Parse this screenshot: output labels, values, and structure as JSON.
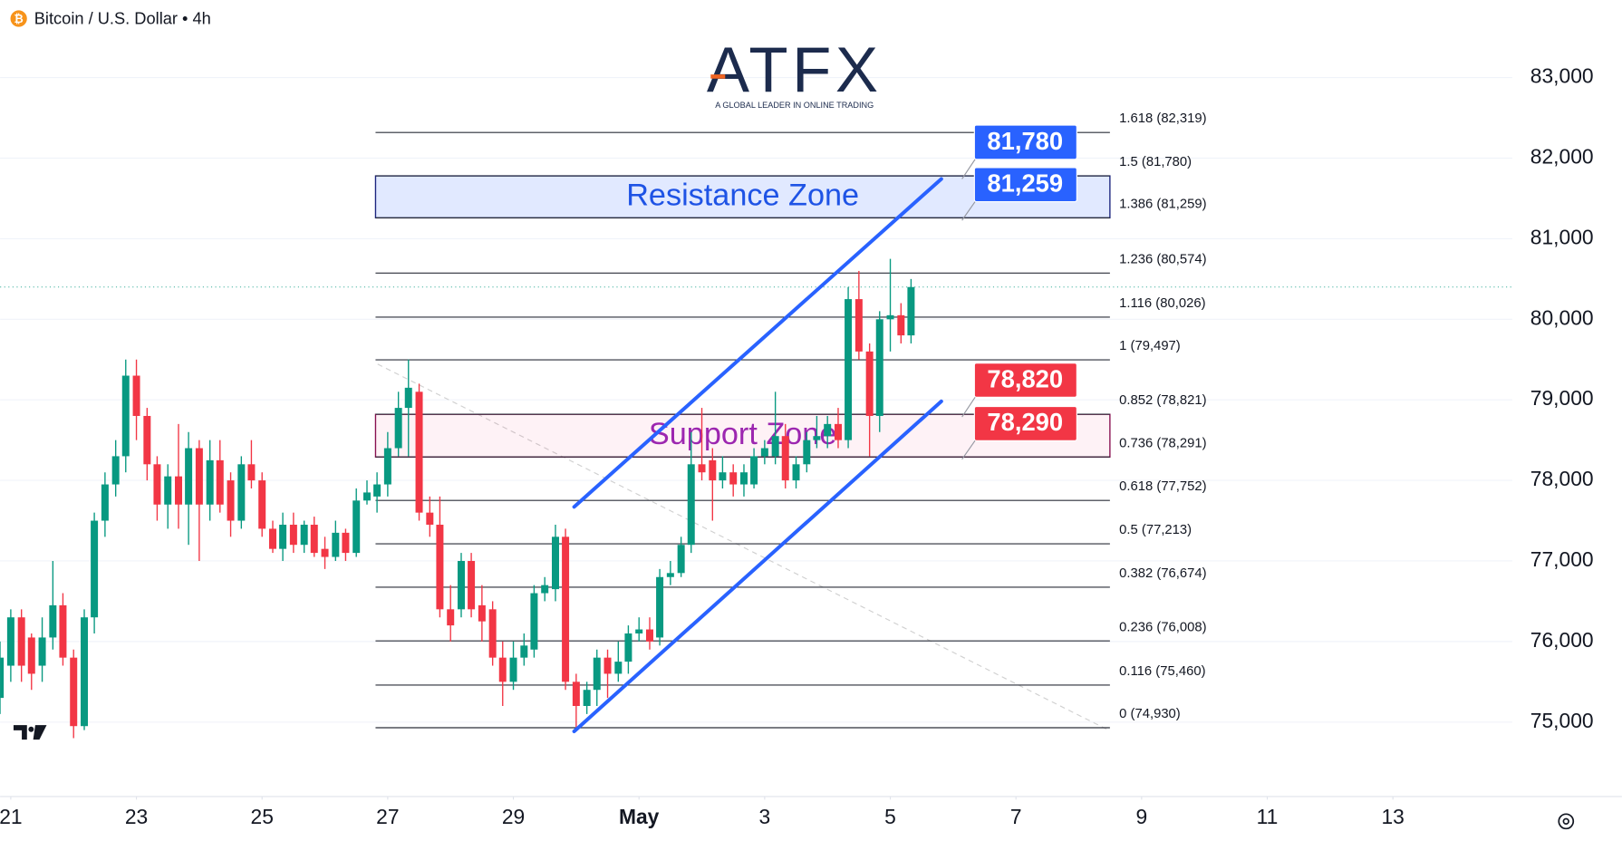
{
  "chart_data": {
    "type": "candlestick",
    "title": "Bitcoin / U.S. Dollar • 4h",
    "logo": "ATFX",
    "logo_tagline": "A GLOBAL LEADER IN ONLINE TRADING",
    "up_color": "#089981",
    "down_color": "#f23645",
    "grid": true,
    "xlim": [
      20.83,
      44.9
    ],
    "ylim": [
      74076,
      83963
    ],
    "xticks": [
      21,
      23,
      25,
      27,
      29,
      {
        "value": 31,
        "label": "May"
      },
      {
        "value": 33,
        "label": "3"
      },
      {
        "value": 35,
        "label": "5"
      },
      {
        "value": 37,
        "label": "7"
      },
      {
        "value": 39,
        "label": "9"
      },
      {
        "value": 41,
        "label": "11"
      },
      {
        "value": 43,
        "label": "13"
      }
    ],
    "yticks": [
      {
        "value": 75000,
        "label": "75,000"
      },
      {
        "value": 76000,
        "label": "76,000"
      },
      {
        "value": 77000,
        "label": "77,000"
      },
      {
        "value": 78000,
        "label": "78,000"
      },
      {
        "value": 79000,
        "label": "79,000"
      },
      {
        "value": 80000,
        "label": "80,000"
      },
      {
        "value": 81000,
        "label": "81,000"
      },
      {
        "value": 82000,
        "label": "82,000"
      },
      {
        "value": 83000,
        "label": "83,000"
      }
    ],
    "x": [
      20.83,
      21,
      21.17,
      21.33,
      21.5,
      21.67,
      21.83,
      22,
      22.17,
      22.33,
      22.5,
      22.67,
      22.83,
      23,
      23.17,
      23.33,
      23.5,
      23.67,
      23.83,
      24,
      24.17,
      24.33,
      24.5,
      24.67,
      24.83,
      25,
      25.17,
      25.33,
      25.5,
      25.67,
      25.83,
      26,
      26.17,
      26.33,
      26.5,
      26.67,
      26.83,
      27,
      27.17,
      27.33,
      27.5,
      27.67,
      27.83,
      28,
      28.17,
      28.33,
      28.5,
      28.67,
      28.83,
      29,
      29.17,
      29.33,
      29.5,
      29.67,
      29.83,
      30,
      30.17,
      30.33,
      30.5,
      30.67,
      30.83,
      31,
      31.17,
      31.33,
      31.5,
      31.67,
      31.83,
      32,
      32.17,
      32.33,
      32.5,
      32.67,
      32.83,
      33,
      33.17,
      33.33,
      33.5,
      33.67,
      33.83,
      34,
      34.17,
      34.33,
      34.5,
      34.67,
      34.83,
      35,
      35.17,
      35.33
    ],
    "open": [
      75300,
      75700,
      76300,
      76050,
      75700,
      76050,
      76450,
      75800,
      74950,
      76300,
      77500,
      77950,
      78300,
      79300,
      78800,
      78200,
      77700,
      78050,
      77700,
      78400,
      77700,
      78250,
      78000,
      77500,
      78200,
      78000,
      77400,
      77150,
      77450,
      77200,
      77450,
      77150,
      77050,
      77350,
      77100,
      77750,
      77800,
      77950,
      78400,
      78900,
      79100,
      77600,
      77450,
      76400,
      76400,
      77000,
      76450,
      76400,
      75800,
      75500,
      75800,
      75900,
      76600,
      76650,
      77300,
      75500,
      75200,
      75400,
      75800,
      75600,
      75750,
      76100,
      76150,
      76050,
      76800,
      76850,
      77200,
      78200,
      78250,
      78000,
      78100,
      77950,
      77950,
      78300,
      78300,
      78550,
      78000,
      78200,
      78500,
      78550,
      78700,
      78500,
      80250,
      79600,
      78800,
      80000,
      80050,
      79800
    ],
    "high": [
      76000,
      76400,
      76400,
      76100,
      76300,
      77000,
      76600,
      75900,
      76400,
      77600,
      78100,
      78500,
      79500,
      79500,
      78900,
      78300,
      78200,
      78700,
      78600,
      78500,
      78500,
      78500,
      78100,
      78300,
      78500,
      78100,
      77500,
      77600,
      77600,
      77500,
      77550,
      77300,
      77500,
      77400,
      77900,
      78000,
      78100,
      78600,
      79100,
      79500,
      79200,
      77800,
      77800,
      76700,
      77100,
      77100,
      76700,
      76500,
      76000,
      76000,
      76100,
      76700,
      76800,
      77450,
      77400,
      75600,
      75500,
      75900,
      75900,
      76000,
      76200,
      76300,
      76300,
      76900,
      77000,
      77300,
      78600,
      78900,
      78400,
      78300,
      78200,
      78200,
      78400,
      78500,
      79100,
      78700,
      78300,
      78600,
      78800,
      78800,
      78900,
      80400,
      80600,
      79700,
      80100,
      80750,
      80200,
      80500
    ],
    "low": [
      75100,
      75500,
      75500,
      75400,
      75500,
      75900,
      75700,
      74800,
      74900,
      76100,
      77300,
      77800,
      78100,
      78500,
      78000,
      77500,
      77400,
      77400,
      77200,
      77000,
      77500,
      77600,
      77300,
      77400,
      77900,
      77300,
      77100,
      77000,
      77100,
      77100,
      77050,
      76900,
      77000,
      77000,
      77050,
      77700,
      77600,
      77800,
      78300,
      78300,
      77500,
      77300,
      76300,
      76000,
      76300,
      76300,
      76000,
      75700,
      75200,
      75400,
      75700,
      75800,
      76500,
      76500,
      75400,
      74900,
      75100,
      75200,
      75300,
      75500,
      75600,
      76000,
      75900,
      75950,
      76700,
      76800,
      77100,
      78000,
      77500,
      77900,
      77800,
      77800,
      77900,
      78200,
      78200,
      77900,
      77900,
      78100,
      78400,
      78400,
      78400,
      78400,
      79500,
      78300,
      78600,
      79600,
      79700,
      79700
    ],
    "close": [
      75800,
      76300,
      75700,
      75600,
      76050,
      76450,
      75800,
      74950,
      76300,
      77500,
      77950,
      78300,
      79300,
      78800,
      78200,
      77700,
      78050,
      77700,
      78400,
      77700,
      78250,
      77700,
      77500,
      78200,
      78000,
      77400,
      77150,
      77450,
      77200,
      77450,
      77100,
      77050,
      77350,
      77100,
      77750,
      77850,
      77950,
      78400,
      78900,
      79150,
      77600,
      77450,
      76400,
      76200,
      77000,
      76400,
      76250,
      75800,
      75500,
      75800,
      75950,
      76600,
      76700,
      77300,
      75500,
      75200,
      75400,
      75800,
      75600,
      75750,
      76100,
      76150,
      76000,
      76800,
      76850,
      77200,
      78200,
      78100,
      78000,
      78100,
      77950,
      78100,
      78300,
      78400,
      78550,
      78000,
      78200,
      78500,
      78550,
      78700,
      78500,
      80250,
      79600,
      78800,
      80000,
      80050,
      79800,
      80400
    ],
    "fib_levels": [
      {
        "label": "1.618 (82,319)",
        "value": 82319
      },
      {
        "label": "1.5 (81,780)",
        "value": 81780
      },
      {
        "label": "1.386 (81,259)",
        "value": 81259
      },
      {
        "label": "1.236 (80,574)",
        "value": 80574
      },
      {
        "label": "1.116 (80,026)",
        "value": 80026
      },
      {
        "label": "1 (79,497)",
        "value": 79497
      },
      {
        "label": "0.852 (78,821)",
        "value": 78821
      },
      {
        "label": "0.736 (78,291)",
        "value": 78291
      },
      {
        "label": "0.618 (77,752)",
        "value": 77752
      },
      {
        "label": "0.5 (77,213)",
        "value": 77213
      },
      {
        "label": "0.382 (76,674)",
        "value": 76674
      },
      {
        "label": "0.236 (76,008)",
        "value": 76008
      },
      {
        "label": "0.116 (75,460)",
        "value": 75460
      },
      {
        "label": "0 (74,930)",
        "value": 74930
      }
    ],
    "zones": [
      {
        "label": "Resistance Zone",
        "low": 81259,
        "high": 81780,
        "fill": "rgba(41,98,255,0.14)",
        "stroke": "#1a237e",
        "text_color": "#1e53e5"
      },
      {
        "label": "Support Zone",
        "low": 78290,
        "high": 78820,
        "fill": "rgba(233,30,99,0.06)",
        "stroke": "#880e4f",
        "text_color": "#9c27b0"
      }
    ],
    "price_tags": [
      {
        "label": "81,780",
        "value": 81780,
        "color": "#2962ff"
      },
      {
        "label": "81,259",
        "value": 81259,
        "color": "#2962ff"
      },
      {
        "label": "78,820",
        "value": 78820,
        "color": "#f23645"
      },
      {
        "label": "78,290",
        "value": 78290,
        "color": "#f23645"
      }
    ]
  }
}
